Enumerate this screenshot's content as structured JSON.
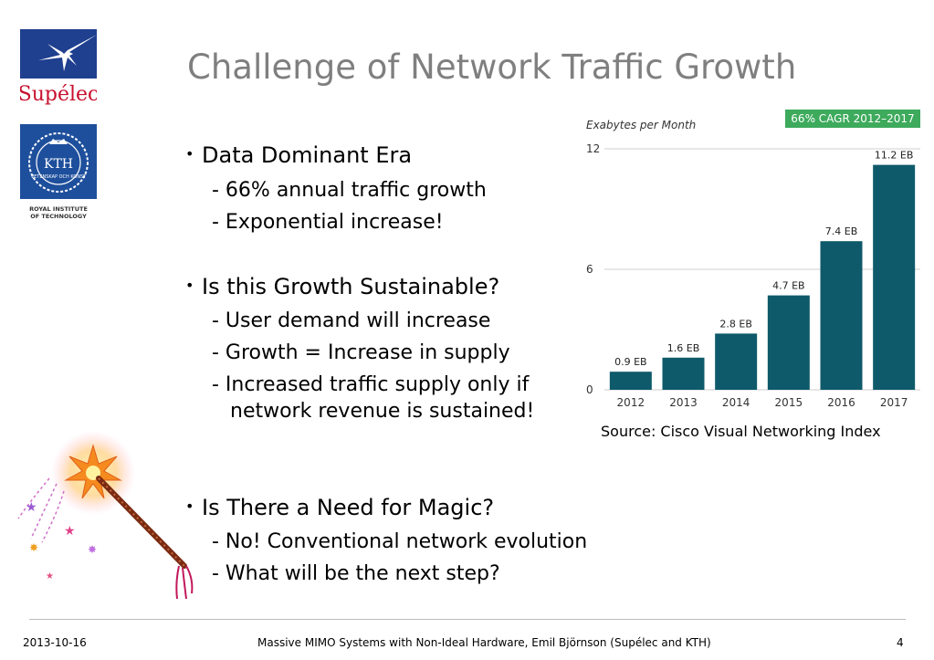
{
  "logos": {
    "supelec_text": "Supélec",
    "kth_text": "KTH",
    "kth_sub": "VETENSKAP OCH KONST",
    "kth_caption_1": "ROYAL INSTITUTE",
    "kth_caption_2": "OF TECHNOLOGY"
  },
  "title": "Challenge of Network Traffic Growth",
  "bullets": {
    "b1": "Data Dominant Era",
    "b1_1": "- 66% annual traffic growth",
    "b1_2": "- Exponential increase!",
    "b2": "Is this Growth Sustainable?",
    "b2_1": "- User demand will increase",
    "b2_2": "- Growth = Increase in supply",
    "b2_3a": "- Increased traffic supply only if",
    "b2_3b": "network revenue is sustained!",
    "b3": "Is There a Need for Magic?",
    "b3_1": "- No! Conventional network evolution",
    "b3_2": "- What will be the next step?"
  },
  "chart_data": {
    "type": "bar",
    "title": "66% CAGR 2012–2017",
    "ylabel": "Exabytes per Month",
    "xlabel": "",
    "categories": [
      "2012",
      "2013",
      "2014",
      "2015",
      "2016",
      "2017"
    ],
    "values": [
      0.9,
      1.6,
      2.8,
      4.7,
      7.4,
      11.2
    ],
    "data_labels": [
      "0.9 EB",
      "1.6 EB",
      "2.8 EB",
      "4.7 EB",
      "7.4 EB",
      "11.2 EB"
    ],
    "yticks": [
      "0",
      "6",
      "12"
    ],
    "ylim": [
      0,
      12
    ],
    "grid": true,
    "bar_color": "#0e5a6b",
    "badge_color": "#3daa5c"
  },
  "source": "Source: Cisco Visual Networking Index",
  "footer": {
    "date": "2013-10-16",
    "center": "Massive MIMO Systems with Non-Ideal Hardware, Emil Björnson (Supélec and KTH)",
    "page": "4"
  }
}
